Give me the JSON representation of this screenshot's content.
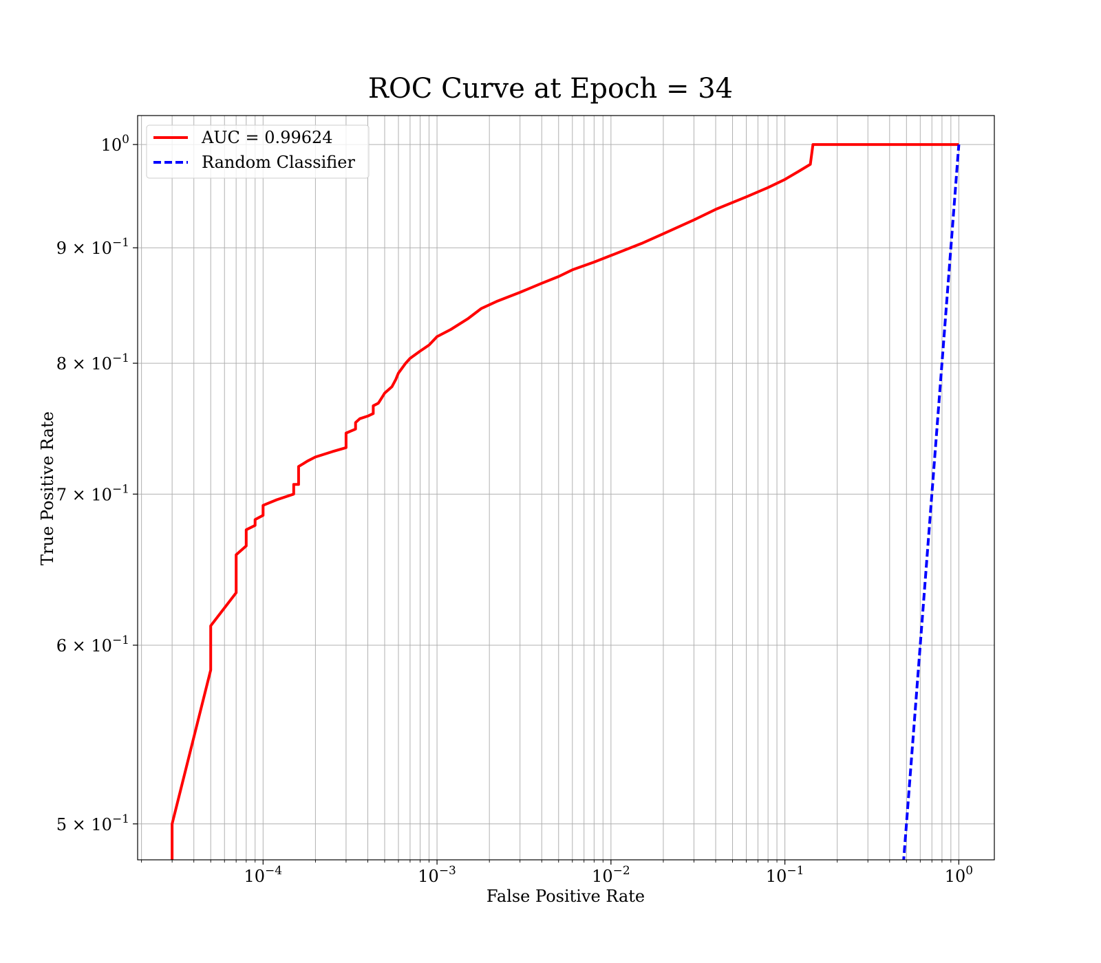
{
  "chart_data": {
    "type": "line",
    "title": "ROC Curve at Epoch = 34",
    "xlabel": "False Positive Rate",
    "ylabel": "True Positive Rate",
    "xscale": "log",
    "yscale": "log",
    "xlim": [
      1.9e-05,
      1.6
    ],
    "ylim": [
      0.482,
      1.03
    ],
    "grid": true,
    "legend_position": "top-left",
    "x_ticks": [
      {
        "value": 0.0001,
        "base": "10",
        "exp": "−4"
      },
      {
        "value": 0.001,
        "base": "10",
        "exp": "−3"
      },
      {
        "value": 0.01,
        "base": "10",
        "exp": "−2"
      },
      {
        "value": 0.1,
        "base": "10",
        "exp": "−1"
      },
      {
        "value": 1,
        "base": "10",
        "exp": "0"
      }
    ],
    "y_ticks": [
      {
        "value": 1.0,
        "base": "10",
        "exp": "0"
      },
      {
        "value": 0.9,
        "base": "9 × 10",
        "exp": "−1"
      },
      {
        "value": 0.8,
        "base": "8 × 10",
        "exp": "−1"
      },
      {
        "value": 0.7,
        "base": "7 × 10",
        "exp": "−1"
      },
      {
        "value": 0.6,
        "base": "6 × 10",
        "exp": "−1"
      },
      {
        "value": 0.5,
        "base": "5 × 10",
        "exp": "−1"
      }
    ],
    "series": [
      {
        "name": "AUC = 0.99624",
        "color": "#ff0000",
        "style": "solid",
        "points": [
          [
            3e-05,
            0.48
          ],
          [
            3e-05,
            0.5
          ],
          [
            5e-05,
            0.585
          ],
          [
            5e-05,
            0.612
          ],
          [
            7e-05,
            0.633
          ],
          [
            7e-05,
            0.658
          ],
          [
            8e-05,
            0.664
          ],
          [
            8e-05,
            0.675
          ],
          [
            9e-05,
            0.678
          ],
          [
            9e-05,
            0.682
          ],
          [
            0.0001,
            0.685
          ],
          [
            0.0001,
            0.692
          ],
          [
            0.00012,
            0.696
          ],
          [
            0.00015,
            0.7
          ],
          [
            0.00015,
            0.707
          ],
          [
            0.00016,
            0.707
          ],
          [
            0.00016,
            0.72
          ],
          [
            0.00017,
            0.722
          ],
          [
            0.00018,
            0.724
          ],
          [
            0.0002,
            0.727
          ],
          [
            0.00025,
            0.731
          ],
          [
            0.0003,
            0.734
          ],
          [
            0.0003,
            0.745
          ],
          [
            0.00034,
            0.748
          ],
          [
            0.00034,
            0.753
          ],
          [
            0.00036,
            0.756
          ],
          [
            0.0004,
            0.758
          ],
          [
            0.00043,
            0.76
          ],
          [
            0.00043,
            0.766
          ],
          [
            0.00046,
            0.768
          ],
          [
            0.00048,
            0.772
          ],
          [
            0.0005,
            0.776
          ],
          [
            0.00055,
            0.781
          ],
          [
            0.00058,
            0.787
          ],
          [
            0.0006,
            0.792
          ],
          [
            0.00066,
            0.8
          ],
          [
            0.0007,
            0.804
          ],
          [
            0.0008,
            0.81
          ],
          [
            0.0009,
            0.815
          ],
          [
            0.001,
            0.822
          ],
          [
            0.0012,
            0.828
          ],
          [
            0.0015,
            0.837
          ],
          [
            0.0018,
            0.846
          ],
          [
            0.0022,
            0.852
          ],
          [
            0.003,
            0.86
          ],
          [
            0.004,
            0.868
          ],
          [
            0.005,
            0.874
          ],
          [
            0.006,
            0.88
          ],
          [
            0.008,
            0.887
          ],
          [
            0.01,
            0.893
          ],
          [
            0.015,
            0.904
          ],
          [
            0.02,
            0.913
          ],
          [
            0.03,
            0.926
          ],
          [
            0.04,
            0.936
          ],
          [
            0.06,
            0.948
          ],
          [
            0.08,
            0.957
          ],
          [
            0.1,
            0.965
          ],
          [
            0.12,
            0.973
          ],
          [
            0.14,
            0.98
          ],
          [
            0.145,
            1.0
          ],
          [
            1.0,
            1.0
          ]
        ]
      },
      {
        "name": "Random Classifier",
        "color": "#0000ff",
        "style": "dashed",
        "points": [
          [
            0.48,
            0.48
          ],
          [
            1.0,
            1.0
          ]
        ]
      }
    ]
  }
}
